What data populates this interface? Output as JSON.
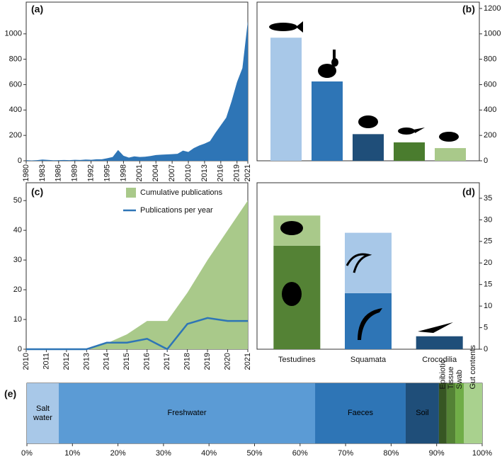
{
  "chart_data": [
    {
      "type": "area",
      "label": "(a)",
      "x": [
        1980,
        1981,
        1982,
        1983,
        1984,
        1985,
        1986,
        1987,
        1988,
        1989,
        1990,
        1991,
        1992,
        1993,
        1994,
        1995,
        1996,
        1997,
        1998,
        1999,
        2000,
        2001,
        2002,
        2003,
        2004,
        2005,
        2006,
        2007,
        2008,
        2009,
        2010,
        2011,
        2012,
        2013,
        2014,
        2015,
        2016,
        2017,
        2018,
        2019,
        2020,
        2021
      ],
      "values": [
        5,
        3,
        5,
        10,
        7,
        4,
        5,
        6,
        5,
        8,
        6,
        10,
        8,
        12,
        12,
        20,
        30,
        85,
        40,
        25,
        35,
        30,
        32,
        38,
        45,
        48,
        50,
        52,
        55,
        80,
        70,
        100,
        120,
        135,
        155,
        220,
        280,
        340,
        470,
        620,
        730,
        1100
      ],
      "color": "#2e75b6",
      "xlim": [
        1980,
        2021
      ],
      "xticks": [
        1980,
        1983,
        1986,
        1989,
        1992,
        1995,
        1998,
        2001,
        2004,
        2007,
        2010,
        2013,
        2016,
        2019,
        2021
      ],
      "ylim": [
        0,
        1250
      ],
      "yticks": [
        0,
        200,
        400,
        600,
        800,
        1000
      ]
    },
    {
      "type": "bar",
      "label": "(b)",
      "categories": [
        null,
        null,
        null,
        null,
        null
      ],
      "values": [
        970,
        625,
        210,
        145,
        100
      ],
      "colors": [
        "#a8c8e8",
        "#2e75b6",
        "#1f4e79",
        "#4a7c2e",
        "#a9c98a"
      ],
      "ylim": [
        0,
        1250
      ],
      "yticks": [
        0,
        200,
        400,
        600,
        800,
        1000,
        1200
      ],
      "y_axis_side": "right"
    },
    {
      "type": "line",
      "label": "(c)",
      "x": [
        2010,
        2011,
        2012,
        2013,
        2014,
        2015,
        2016,
        2017,
        2018,
        2019,
        2020,
        2021
      ],
      "series": [
        {
          "name": "Cumulative publications",
          "style": "area",
          "color": "#a9c98a",
          "values": [
            0,
            0,
            0,
            0,
            2,
            5,
            9.5,
            9.5,
            19,
            30,
            40,
            50
          ]
        },
        {
          "name": "Publications per year",
          "style": "line",
          "color": "#2e75b6",
          "values": [
            0,
            0,
            0,
            0,
            2.2,
            2.2,
            3.5,
            0,
            8.5,
            10.5,
            9.5,
            9.5
          ]
        }
      ],
      "xlim": [
        2010,
        2021
      ],
      "xticks": [
        2010,
        2011,
        2012,
        2013,
        2014,
        2015,
        2016,
        2017,
        2018,
        2019,
        2020,
        2021
      ],
      "ylim": [
        0,
        56
      ],
      "yticks": [
        0,
        10,
        20,
        30,
        40,
        50
      ],
      "legend": "top"
    },
    {
      "type": "stacked_bar",
      "label": "(d)",
      "categories": [
        "Testudines",
        "Squamata",
        "Crocodilia"
      ],
      "series": [
        {
          "colors": [
            "#548235",
            "#2e75b6",
            "#1f4e79"
          ],
          "values": [
            24,
            13,
            3
          ]
        },
        {
          "colors": [
            "#a9c98a",
            "#a8c8e8",
            null
          ],
          "values": [
            7,
            14,
            null
          ]
        }
      ],
      "ylim": [
        0,
        38.6
      ],
      "yticks": [
        0,
        5,
        10,
        15,
        20,
        25,
        30,
        35
      ],
      "y_axis_side": "right"
    },
    {
      "type": "stacked_bar",
      "orientation": "horizontal",
      "label": "(e)",
      "series": [
        {
          "name": "Salt water",
          "color": "#a8c8e8",
          "values": [
            7
          ]
        },
        {
          "name": "Freshwater",
          "color": "#5b9bd5",
          "values": [
            56.3
          ]
        },
        {
          "name": "Faeces",
          "color": "#2e75b6",
          "values": [
            19.9
          ]
        },
        {
          "name": "Soil",
          "color": "#1f4e79",
          "values": [
            7.3
          ]
        },
        {
          "name": "Epibiotic",
          "color": "#375623",
          "values": [
            1.7
          ]
        },
        {
          "name": "Tissue",
          "color": "#548235",
          "values": [
            1.9
          ]
        },
        {
          "name": "Swab",
          "color": "#70ad47",
          "values": [
            1.9
          ]
        },
        {
          "name": "Gut contents",
          "color": "#a9d18e",
          "values": [
            4
          ]
        }
      ],
      "xlim": [
        0,
        100
      ],
      "xticks": [
        {
          "value": 0,
          "label": "0%"
        },
        {
          "value": 10,
          "label": "10%"
        },
        {
          "value": 20,
          "label": "20%"
        },
        {
          "value": 30,
          "label": "30%"
        },
        {
          "value": 40,
          "label": "40%"
        },
        {
          "value": 50,
          "label": "50%"
        },
        {
          "value": 60,
          "label": "60%"
        },
        {
          "value": 70,
          "label": "70%"
        },
        {
          "value": 80,
          "label": "80%"
        },
        {
          "value": 90,
          "label": "90%"
        },
        {
          "value": 100,
          "label": "100%"
        }
      ]
    }
  ]
}
